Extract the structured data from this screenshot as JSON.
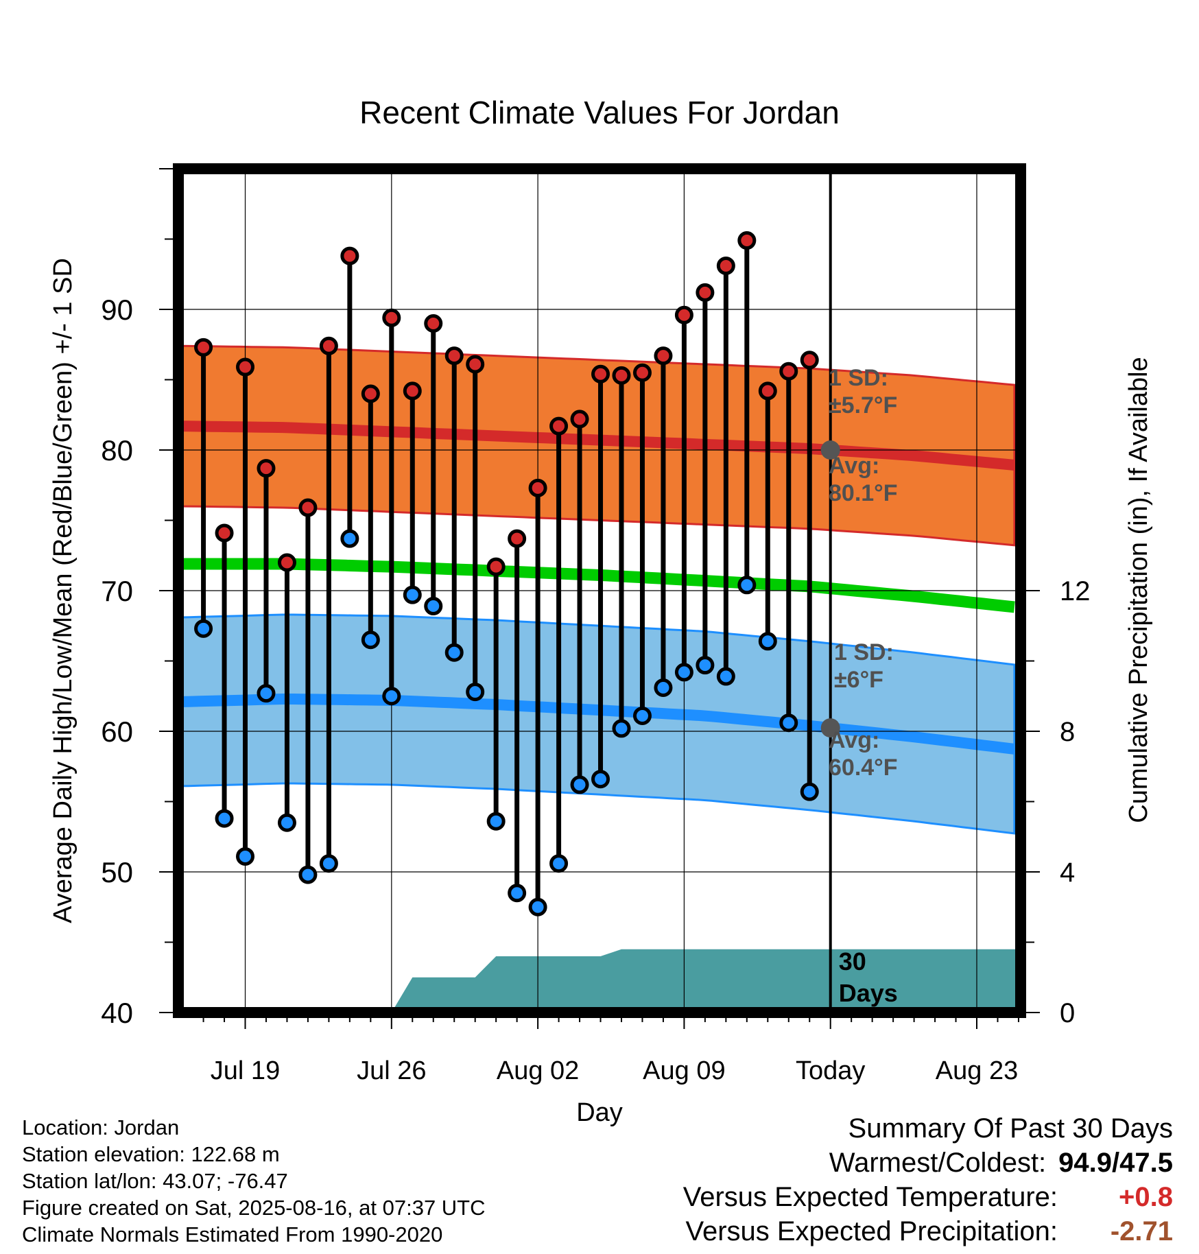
{
  "chart_data": {
    "type": "line",
    "title": "Recent Climate Values For Jordan",
    "xlabel": "Day",
    "ylabel": "Average Daily High/Low/Mean (Red/Blue/Green) +/- 1 SD",
    "y2label": "Cumulative Precipitation (in), If Available",
    "ylim": [
      40,
      100
    ],
    "y2lim": [
      0,
      24
    ],
    "x_ticks": [
      {
        "day": 3,
        "label": "Jul 19"
      },
      {
        "day": 10,
        "label": "Jul 26"
      },
      {
        "day": 17,
        "label": "Aug 02"
      },
      {
        "day": 24,
        "label": "Aug 09"
      },
      {
        "day": 31,
        "label": "Today"
      },
      {
        "day": 38,
        "label": "Aug 23"
      }
    ],
    "y_ticks": [
      40,
      50,
      60,
      70,
      80,
      90
    ],
    "y2_ticks": [
      0,
      4,
      8,
      12
    ],
    "x_axis_range_days": [
      -0.2,
      40.1
    ],
    "today_day": 31,
    "today_label": [
      "30",
      "Days"
    ],
    "series": [
      {
        "name": "High",
        "color": "#d42a2a",
        "values": [
          87.3,
          74.1,
          85.9,
          78.7,
          72.0,
          75.9,
          87.4,
          93.8,
          84.0,
          89.4,
          84.2,
          89.0,
          86.7,
          86.1,
          71.7,
          73.7,
          77.3,
          81.7,
          82.2,
          85.4,
          85.3,
          85.5,
          86.7,
          89.6,
          91.2,
          93.1,
          94.9,
          84.2,
          85.6,
          86.4
        ]
      },
      {
        "name": "Low",
        "color": "#2f95ee",
        "values": [
          67.3,
          53.8,
          51.1,
          62.7,
          53.5,
          49.8,
          50.6,
          73.7,
          66.5,
          62.5,
          69.7,
          68.9,
          65.6,
          62.8,
          53.6,
          48.5,
          47.5,
          50.6,
          56.2,
          56.6,
          60.2,
          61.1,
          63.1,
          64.2,
          64.7,
          63.9,
          70.4,
          66.4,
          60.6,
          55.7
        ]
      }
    ],
    "normals": {
      "days": [
        0,
        5,
        10,
        15,
        20,
        25,
        30,
        35,
        40
      ],
      "high_avg": [
        81.7,
        81.6,
        81.3,
        81.0,
        80.7,
        80.4,
        80.1,
        79.6,
        78.9
      ],
      "high_sd": 5.7,
      "low_avg": [
        62.1,
        62.3,
        62.2,
        61.9,
        61.5,
        61.1,
        60.4,
        59.6,
        58.7
      ],
      "low_sd": 6,
      "mean_avg": [
        71.9,
        71.9,
        71.7,
        71.4,
        71.1,
        70.7,
        70.3,
        69.6,
        68.8
      ]
    },
    "precip": {
      "x": [
        0,
        10,
        11,
        14,
        15,
        20,
        21,
        40.1
      ],
      "cumulative_in": [
        0,
        0,
        1.0,
        1.0,
        1.6,
        1.6,
        1.8,
        1.8
      ]
    },
    "annotations": {
      "high_sd": [
        "1 SD:",
        "±5.7°F"
      ],
      "high_avg": [
        "Avg:",
        "80.1°F"
      ],
      "low_sd": [
        "1 SD:",
        "±6°F"
      ],
      "low_avg": [
        "Avg:",
        "60.4°F"
      ]
    },
    "colors": {
      "high_band": "#f07a30",
      "high_line": "#d42a2a",
      "low_band": "#82c0e8",
      "low_line": "#1e8fff",
      "mean_line": "#00cc00",
      "precip": "#4a9da0",
      "annotation": "#505050"
    }
  },
  "info": {
    "location": "Location: Jordan",
    "elevation": "Station elevation: 122.68 m",
    "latlon": "Station lat/lon: 43.07; -76.47",
    "created": "Figure created on Sat, 2025-08-16, at 07:37 UTC",
    "normals": "Climate Normals Estimated From 1990-2020"
  },
  "summary": {
    "title": "Summary Of Past 30 Days",
    "warm_cold_label": "Warmest/Coldest:",
    "warm_cold_value": "94.9/47.5",
    "temp_label": "Versus Expected Temperature:",
    "temp_value": "+0.8",
    "temp_color": "#d42a2a",
    "precip_label": "Versus Expected Precipitation:",
    "precip_value": "-2.71",
    "precip_color": "#a0522d"
  }
}
